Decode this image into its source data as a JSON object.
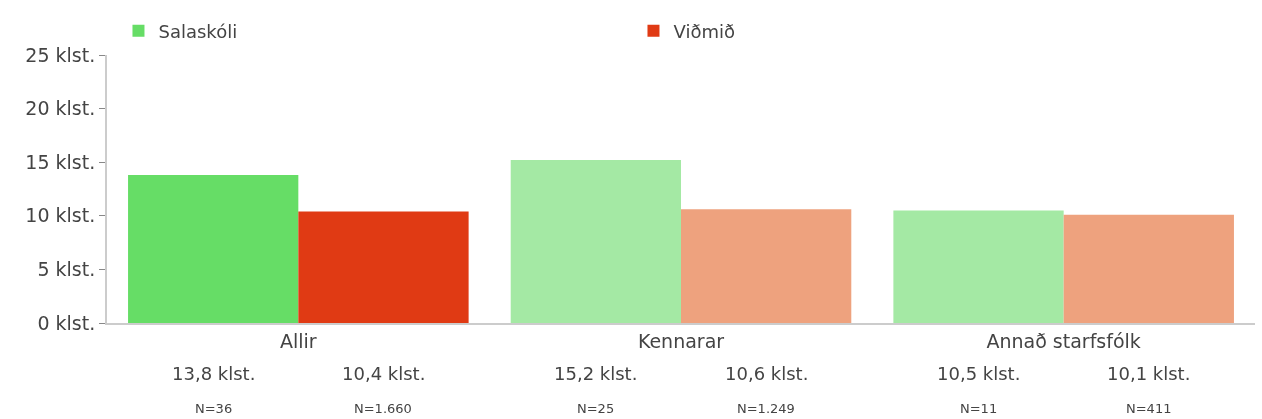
{
  "chart_data": {
    "type": "bar",
    "categories": [
      "Allir",
      "Kennarar",
      "Annað starfsfólk"
    ],
    "series": [
      {
        "name": "Salaskóli",
        "colors": [
          "#66dd66",
          "#a4e9a4",
          "#a4e9a4"
        ],
        "values": [
          13.8,
          15.2,
          10.5
        ],
        "value_labels": [
          "13,8 klst.",
          "15,2 klst.",
          "10,5 klst."
        ]
      },
      {
        "name": "Viðmið",
        "colors": [
          "#e03a14",
          "#eea27e",
          "#eea27e"
        ],
        "values": [
          10.4,
          10.6,
          10.1
        ],
        "value_labels": [
          "10,4 klst.",
          "10,6 klst.",
          "10,1 klst."
        ]
      }
    ],
    "ylim": [
      0,
      25
    ],
    "yticks": [
      {
        "value": 0,
        "label": "0 klst."
      },
      {
        "value": 5,
        "label": "5 klst."
      },
      {
        "value": 10,
        "label": "10 klst."
      },
      {
        "value": 15,
        "label": "15 klst."
      },
      {
        "value": 20,
        "label": "20 klst."
      },
      {
        "value": 25,
        "label": "25 klst."
      }
    ],
    "annotations": [
      "N=36",
      "N=1.660",
      "N=25",
      "N=1.249",
      "N=11",
      "N=411"
    ],
    "grid": false,
    "legend": "top"
  }
}
